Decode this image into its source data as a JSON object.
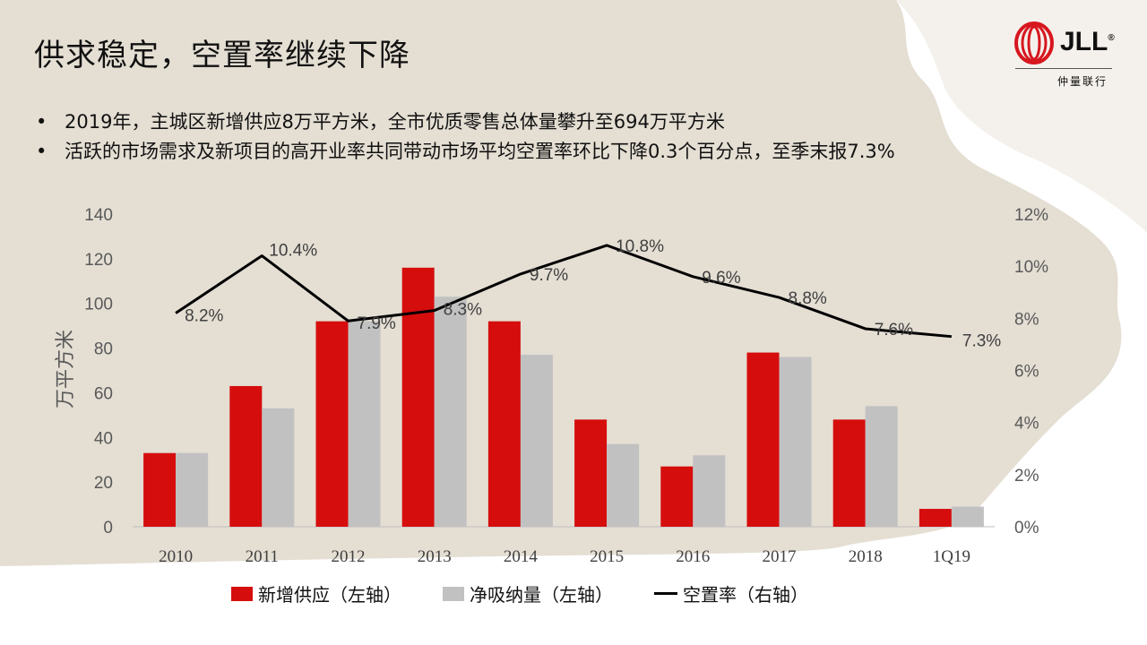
{
  "slide": {
    "title": "供求稳定，空置率继续下降",
    "bullets": [
      "2019年，主城区新增供应8万平方米，全市优质零售总体量攀升至694万平方米",
      "活跃的市场需求及新项目的高开业率共同带动市场平均空置率环比下降0.3个百分点，至季末报7.3%"
    ],
    "bullet_symbol": "•"
  },
  "logo": {
    "text": "JLL",
    "registered": "®",
    "subtitle": "仲量联行",
    "color": "#d7171f"
  },
  "colors": {
    "supply": "#d60d0d",
    "absorption": "#c1c1c1",
    "vacancy": "#000000",
    "axis_text": "#595959"
  },
  "chart_data": {
    "type": "bar",
    "categories": [
      "2010",
      "2011",
      "2012",
      "2013",
      "2014",
      "2015",
      "2016",
      "2017",
      "2018",
      "1Q19"
    ],
    "series": [
      {
        "name": "新增供应（左轴）",
        "axis": "left",
        "type": "bar",
        "values": [
          33,
          63,
          92,
          116,
          92,
          48,
          27,
          78,
          48,
          8
        ]
      },
      {
        "name": "净吸纳量（左轴）",
        "axis": "left",
        "type": "bar",
        "values": [
          33,
          53,
          92,
          103,
          77,
          37,
          32,
          76,
          54,
          9
        ]
      },
      {
        "name": "空置率（右轴）",
        "axis": "right",
        "type": "line",
        "values": [
          8.2,
          10.4,
          7.9,
          8.3,
          9.7,
          10.8,
          9.6,
          8.8,
          7.6,
          7.3
        ],
        "labels": [
          "8.2%",
          "10.4%",
          "7.9%",
          "8.3%",
          "9.7%",
          "10.8%",
          "9.6%",
          "8.8%",
          "7.6%",
          "7.3%"
        ]
      }
    ],
    "ylabel": "万平方米",
    "ylim": [
      0,
      140
    ],
    "yticks": [
      "0",
      "20",
      "40",
      "60",
      "80",
      "100",
      "120",
      "140"
    ],
    "y2lim": [
      0,
      12
    ],
    "y2ticks": [
      "0%",
      "2%",
      "4%",
      "6%",
      "8%",
      "10%",
      "12%"
    ],
    "grid": false,
    "legend_position": "bottom"
  }
}
